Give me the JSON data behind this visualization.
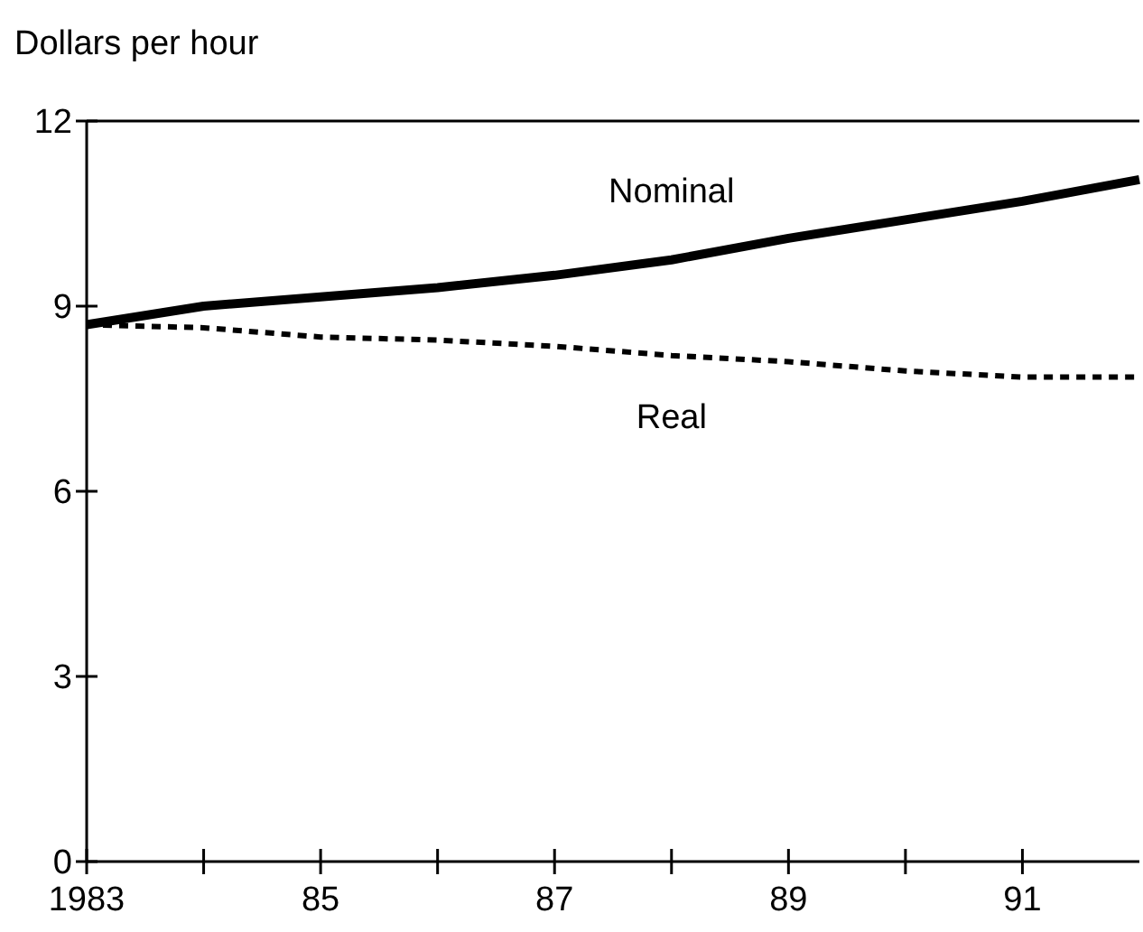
{
  "chart_data": {
    "type": "line",
    "ylabel": "Dollars per hour",
    "x": [
      1983,
      1984,
      1985,
      1986,
      1987,
      1988,
      1989,
      1990,
      1991,
      1992
    ],
    "series": [
      {
        "name": "Nominal",
        "color": "#000000",
        "line_style": "solid",
        "values": [
          8.7,
          9.0,
          9.15,
          9.3,
          9.5,
          9.75,
          10.1,
          10.4,
          10.7,
          11.05
        ]
      },
      {
        "name": "Real",
        "color": "#000000",
        "line_style": "dashed",
        "values": [
          8.7,
          8.65,
          8.5,
          8.45,
          8.35,
          8.2,
          8.1,
          7.95,
          7.85,
          7.85
        ]
      }
    ],
    "xlim": [
      1983,
      1992
    ],
    "xticks": [
      1983,
      {
        "value": 1984,
        "label": null
      },
      {
        "value": 1985,
        "label": "85"
      },
      {
        "value": 1986,
        "label": null
      },
      {
        "value": 1987,
        "label": "87"
      },
      {
        "value": 1988,
        "label": null
      },
      {
        "value": 1989,
        "label": "89"
      },
      {
        "value": 1990,
        "label": null
      },
      {
        "value": 1991,
        "label": "91"
      }
    ],
    "ylim": [
      0,
      12
    ],
    "yticks": [
      0,
      3,
      6,
      9,
      12
    ],
    "grid": false,
    "marker": "none"
  }
}
